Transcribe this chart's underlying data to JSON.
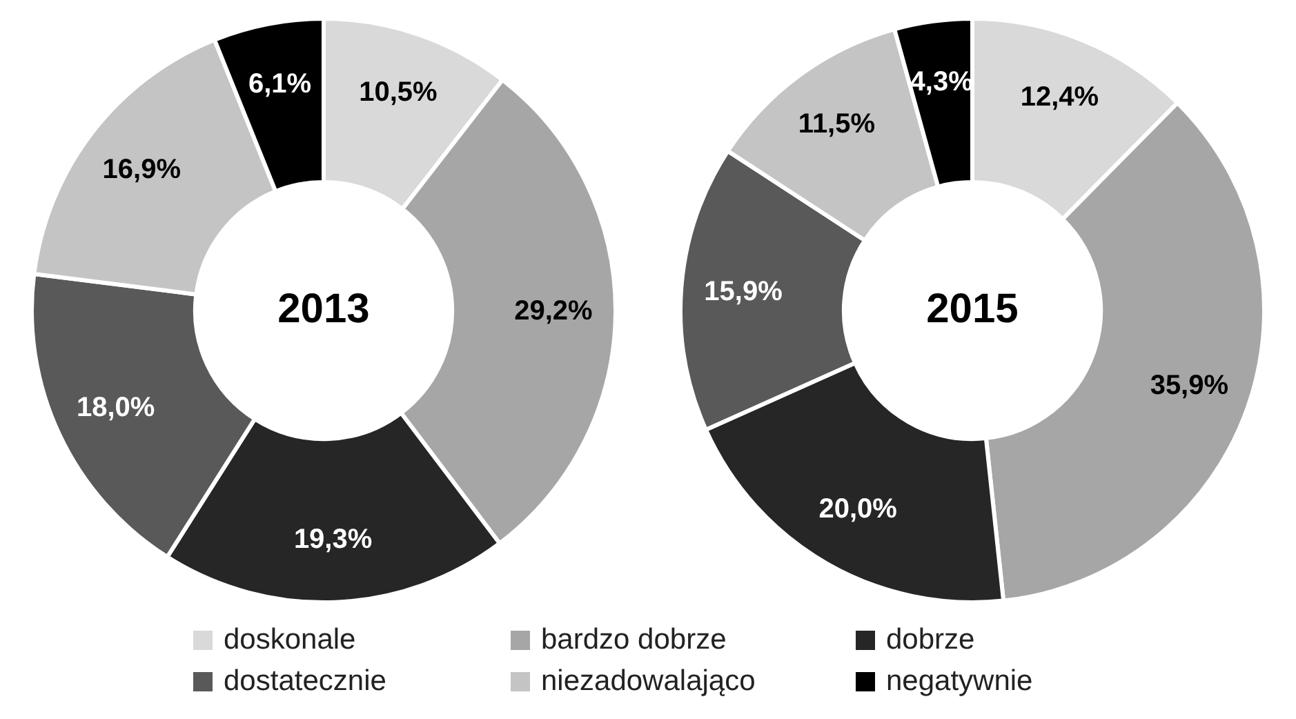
{
  "chart_data": [
    {
      "type": "donut",
      "title": "2013",
      "categories": [
        "doskonale",
        "bardzo dobrze",
        "dobrze",
        "dostatecznie",
        "niezadowalająco",
        "negatywnie"
      ],
      "values": [
        10.5,
        29.2,
        19.3,
        18.0,
        16.9,
        6.1
      ],
      "colors": [
        "#d9d9d9",
        "#a6a6a6",
        "#262626",
        "#595959",
        "#c4c4c4",
        "#000000"
      ],
      "value_labels": [
        "10,5%",
        "29,2%",
        "19,3%",
        "18,0%",
        "16,9%",
        "6,1%"
      ],
      "legend": "bottom"
    },
    {
      "type": "donut",
      "title": "2015",
      "categories": [
        null,
        null,
        null,
        null,
        null,
        null
      ],
      "values": [
        12.4,
        35.9,
        20.0,
        15.9,
        11.5,
        4.3
      ],
      "colors": [
        "#d9d9d9",
        "#a6a6a6",
        "#262626",
        "#595959",
        "#c4c4c4",
        "#000000"
      ],
      "value_labels": [
        "12,4%",
        "35,9%",
        "20,0%",
        "15,9%",
        "11,5%",
        "4,3%"
      ]
    }
  ]
}
